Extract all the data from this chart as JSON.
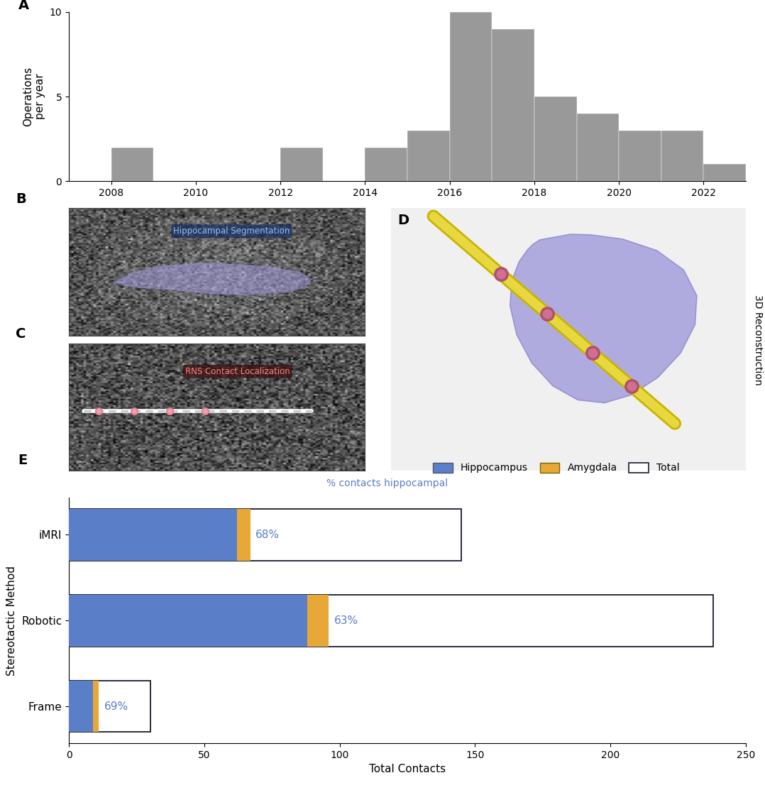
{
  "hist_years": [
    2007,
    2008,
    2009,
    2010,
    2011,
    2012,
    2013,
    2014,
    2015,
    2016,
    2017,
    2018,
    2019,
    2020,
    2021,
    2022
  ],
  "hist_values": [
    0,
    2,
    0,
    0,
    0,
    2,
    0,
    2,
    3,
    10,
    9,
    5,
    4,
    3,
    3,
    1
  ],
  "hist_color": "#999999",
  "hist_ylabel": "Operations\nper year",
  "hist_xlim": [
    2007,
    2023
  ],
  "hist_ylim": [
    0,
    10
  ],
  "hist_yticks": [
    0,
    5,
    10
  ],
  "hist_xticks": [
    2008,
    2010,
    2012,
    2014,
    2016,
    2018,
    2020,
    2022
  ],
  "bar_categories": [
    "iMRI",
    "Robotic",
    "Frame"
  ],
  "bar_hippo": [
    62,
    88,
    9
  ],
  "bar_amyg": [
    5,
    8,
    2
  ],
  "bar_total": [
    145,
    238,
    30
  ],
  "bar_hippo_color": "#5b7ec9",
  "bar_amyg_color": "#e8a838",
  "bar_total_color": "#ffffff",
  "bar_edge_color": "#1a1a2e",
  "bar_pct": [
    "68%",
    "63%",
    "69%"
  ],
  "bar_pct_color": "#5b7ec9",
  "bar_xlabel": "Total Contacts",
  "bar_ylabel": "Stereotactic Method",
  "bar_xlim": [
    0,
    250
  ],
  "bar_xticks": [
    0,
    50,
    100,
    150,
    200,
    250
  ],
  "legend_labels": [
    "Hippocampus",
    "Amygdala",
    "Total"
  ],
  "legend_colors": [
    "#5b7ec9",
    "#e8a838",
    "#ffffff"
  ],
  "annotation_text": "% contacts hippocampal",
  "annotation_color": "#5b7ec9",
  "panel_label_color": "#000000",
  "panel_label_size": 14,
  "background_color": "#ffffff",
  "hippo_3d_color": "#a09adb",
  "electrode_color_outer": "#c8b400",
  "electrode_color_inner": "#e8d840",
  "contact_color_outer": "#b05070",
  "contact_color_inner": "#d07090"
}
